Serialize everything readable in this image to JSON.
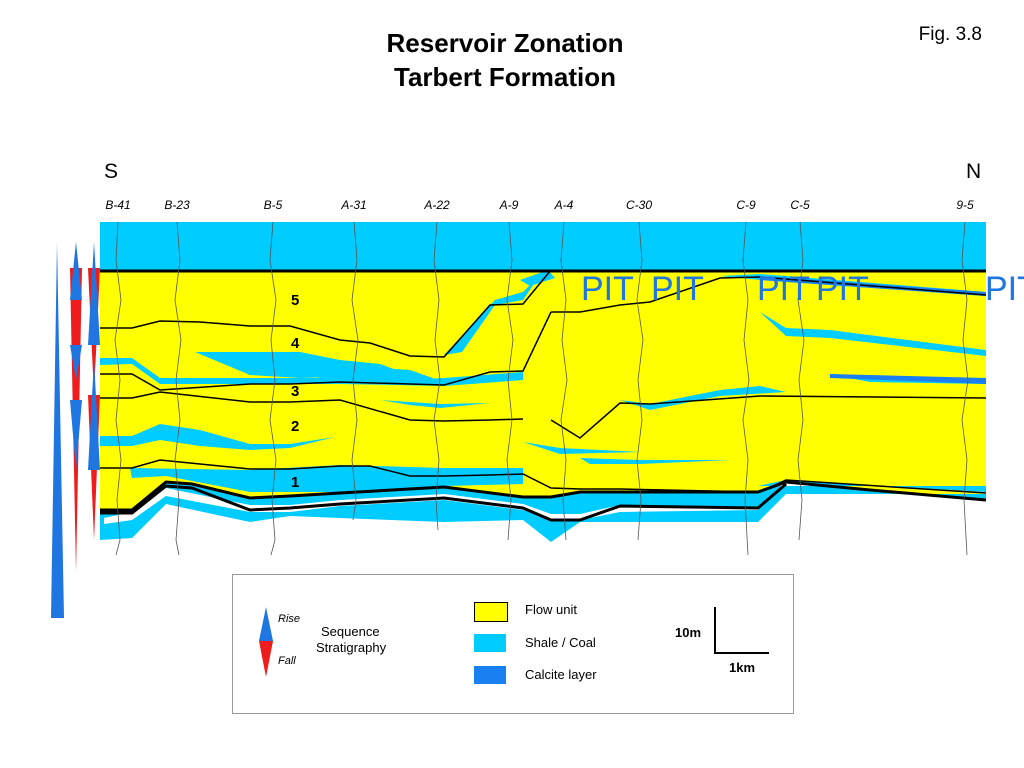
{
  "header": {
    "title_line1": "Reservoir Zonation",
    "title_line2": "Tarbert Formation",
    "figure_label": "Fig. 3.8"
  },
  "section": {
    "south_label": "S",
    "north_label": "N",
    "wells": [
      "B-41",
      "B-23",
      "B-5",
      "A-31",
      "A-22",
      "A-9",
      "A-4",
      "C-30",
      "C-9",
      "C-5",
      "9-5"
    ],
    "pit_labels": [
      "PIT",
      "PIT",
      "PIT",
      "PIT",
      "PIT"
    ],
    "zones": [
      "5",
      "4",
      "3",
      "2",
      "1"
    ]
  },
  "legend": {
    "rise_label": "Rise",
    "fall_label": "Fall",
    "sequence_label_line1": "Sequence",
    "sequence_label_line2": "Stratigraphy",
    "items": [
      {
        "label": "Flow unit",
        "color": "#ffff00"
      },
      {
        "label": "Shale / Coal",
        "color": "#00ccff"
      },
      {
        "label": "Calcite layer",
        "color": "#1a7ff0"
      }
    ],
    "scale_vertical": "10m",
    "scale_horizontal": "1km"
  },
  "colors": {
    "flow_unit": "#ffff00",
    "shale_coal": "#00ccff",
    "calcite": "#1a7ff0",
    "rise_arrow": "#1f76e0",
    "fall_arrow": "#ee1c1c",
    "pit_text": "#1f76e0"
  }
}
